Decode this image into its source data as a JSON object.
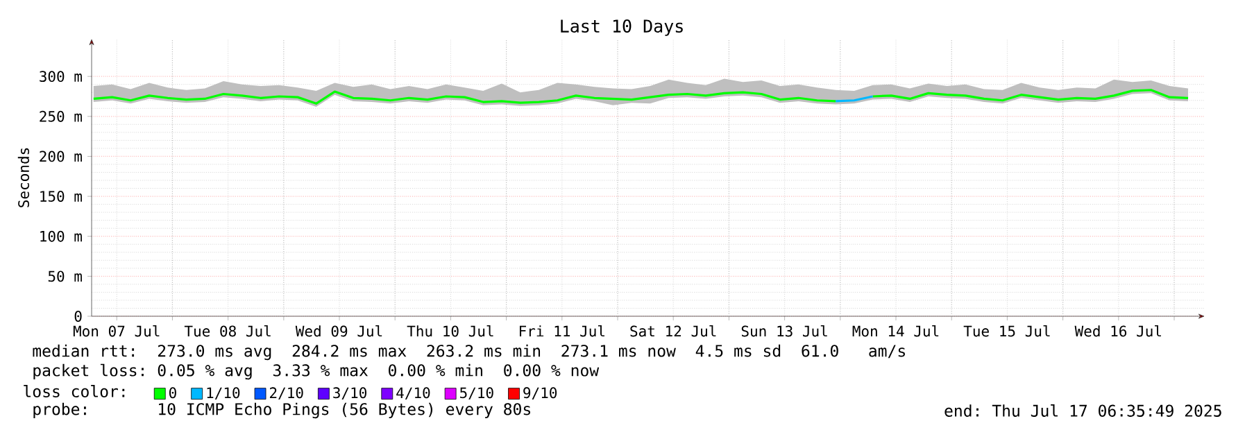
{
  "chart_data": {
    "type": "line",
    "title": "Last 10 Days",
    "ylabel": "Seconds",
    "x": [
      "2025-07-07T07:00",
      "2025-07-07T11:00",
      "2025-07-07T15:00",
      "2025-07-07T19:00",
      "2025-07-07T23:00",
      "2025-07-08T03:00",
      "2025-07-08T07:00",
      "2025-07-08T11:00",
      "2025-07-08T15:00",
      "2025-07-08T19:00",
      "2025-07-08T23:00",
      "2025-07-09T03:00",
      "2025-07-09T07:00",
      "2025-07-09T11:00",
      "2025-07-09T15:00",
      "2025-07-09T19:00",
      "2025-07-09T23:00",
      "2025-07-10T03:00",
      "2025-07-10T07:00",
      "2025-07-10T11:00",
      "2025-07-10T15:00",
      "2025-07-10T19:00",
      "2025-07-10T23:00",
      "2025-07-11T03:00",
      "2025-07-11T07:00",
      "2025-07-11T11:00",
      "2025-07-11T15:00",
      "2025-07-11T19:00",
      "2025-07-11T23:00",
      "2025-07-12T03:00",
      "2025-07-12T07:00",
      "2025-07-12T11:00",
      "2025-07-12T15:00",
      "2025-07-12T19:00",
      "2025-07-12T23:00",
      "2025-07-13T03:00",
      "2025-07-13T07:00",
      "2025-07-13T11:00",
      "2025-07-13T15:00",
      "2025-07-13T19:00",
      "2025-07-13T23:00",
      "2025-07-14T03:00",
      "2025-07-14T07:00",
      "2025-07-14T11:00",
      "2025-07-14T15:00",
      "2025-07-14T19:00",
      "2025-07-14T23:00",
      "2025-07-15T03:00",
      "2025-07-15T07:00",
      "2025-07-15T11:00",
      "2025-07-15T15:00",
      "2025-07-15T19:00",
      "2025-07-15T23:00",
      "2025-07-16T03:00",
      "2025-07-16T07:00",
      "2025-07-16T11:00",
      "2025-07-16T15:00",
      "2025-07-16T19:00",
      "2025-07-16T23:00",
      "2025-07-17T03:00"
    ],
    "series": [
      {
        "name": "0",
        "color": "#00ff00",
        "values": [
          272,
          274,
          270,
          276,
          273,
          271,
          272,
          278,
          276,
          273,
          275,
          274,
          266,
          281,
          273,
          272,
          270,
          273,
          271,
          275,
          274,
          268,
          269,
          267,
          268,
          270,
          276,
          273,
          272,
          271,
          274,
          277,
          278,
          276,
          279,
          280,
          278,
          271,
          273,
          270,
          269,
          null,
          275,
          276,
          272,
          279,
          277,
          276,
          272,
          270,
          277,
          274,
          271,
          273,
          272,
          276,
          282,
          283,
          274,
          273
        ],
        "lower": [
          268,
          270,
          266,
          272,
          269,
          267,
          268,
          274,
          272,
          269,
          271,
          270,
          262,
          277,
          269,
          268,
          266,
          269,
          267,
          271,
          270,
          264,
          265,
          263,
          264,
          266,
          272,
          269,
          264,
          267,
          266,
          273,
          274,
          272,
          275,
          276,
          274,
          267,
          269,
          266,
          265,
          266,
          271,
          272,
          268,
          275,
          273,
          272,
          268,
          266,
          273,
          270,
          267,
          269,
          268,
          272,
          278,
          279,
          270,
          269
        ],
        "upper": [
          288,
          290,
          284,
          292,
          286,
          283,
          285,
          294,
          290,
          288,
          289,
          286,
          282,
          292,
          287,
          290,
          284,
          288,
          284,
          290,
          286,
          282,
          291,
          280,
          283,
          292,
          290,
          287,
          285,
          284,
          288,
          296,
          292,
          289,
          297,
          293,
          295,
          288,
          290,
          286,
          283,
          282,
          289,
          290,
          285,
          291,
          288,
          290,
          284,
          283,
          292,
          286,
          283,
          286,
          285,
          296,
          293,
          295,
          288,
          285
        ]
      },
      {
        "name": "1/10",
        "color": "#00b8ff",
        "values": [
          null,
          null,
          null,
          null,
          null,
          null,
          null,
          null,
          null,
          null,
          null,
          null,
          null,
          null,
          null,
          null,
          null,
          null,
          null,
          null,
          null,
          null,
          null,
          null,
          null,
          null,
          null,
          null,
          null,
          null,
          null,
          null,
          null,
          null,
          null,
          null,
          null,
          null,
          null,
          null,
          269,
          270,
          275,
          null,
          null,
          null,
          null,
          null,
          null,
          null,
          null,
          null,
          null,
          null,
          null,
          null,
          null,
          null,
          null,
          null
        ]
      },
      {
        "name": "2/10",
        "color": "#0059ff",
        "values": [
          null,
          null,
          null,
          null,
          null,
          null,
          null,
          null,
          null,
          null,
          null,
          null,
          null,
          null,
          null,
          null,
          null,
          null,
          null,
          null,
          null,
          null,
          null,
          null,
          null,
          null,
          null,
          null,
          null,
          null,
          null,
          null,
          null,
          null,
          null,
          null,
          null,
          null,
          null,
          null,
          null,
          null,
          null,
          null,
          null,
          null,
          null,
          null,
          null,
          null,
          null,
          null,
          null,
          null,
          null,
          null,
          null,
          null,
          null,
          null
        ]
      },
      {
        "name": "3/10",
        "color": "#5e00ff",
        "values": [
          null,
          null,
          null,
          null,
          null,
          null,
          null,
          null,
          null,
          null,
          null,
          null,
          null,
          null,
          null,
          null,
          null,
          null,
          null,
          null,
          null,
          null,
          null,
          null,
          null,
          null,
          null,
          null,
          null,
          null,
          null,
          null,
          null,
          null,
          null,
          null,
          null,
          null,
          null,
          null,
          null,
          null,
          null,
          null,
          null,
          null,
          null,
          null,
          null,
          null,
          null,
          null,
          null,
          null,
          null,
          null,
          null,
          null,
          null,
          null
        ]
      },
      {
        "name": "4/10",
        "color": "#7e00ff",
        "values": [
          null,
          null,
          null,
          null,
          null,
          null,
          null,
          null,
          null,
          null,
          null,
          null,
          null,
          null,
          null,
          null,
          null,
          null,
          null,
          null,
          null,
          null,
          null,
          null,
          null,
          null,
          null,
          null,
          null,
          null,
          null,
          null,
          null,
          null,
          null,
          null,
          null,
          null,
          null,
          null,
          null,
          null,
          null,
          null,
          null,
          null,
          null,
          null,
          null,
          null,
          null,
          null,
          null,
          null,
          null,
          null,
          null,
          null,
          null,
          null
        ]
      },
      {
        "name": "5/10",
        "color": "#dd00ff",
        "values": [
          null,
          null,
          null,
          null,
          null,
          null,
          null,
          null,
          null,
          null,
          null,
          null,
          null,
          null,
          null,
          null,
          null,
          null,
          null,
          null,
          null,
          null,
          null,
          null,
          null,
          null,
          null,
          null,
          null,
          null,
          null,
          null,
          null,
          null,
          null,
          null,
          null,
          null,
          null,
          null,
          null,
          null,
          null,
          null,
          null,
          null,
          null,
          null,
          null,
          null,
          null,
          null,
          null,
          null,
          null,
          null,
          null,
          null,
          null,
          null
        ]
      },
      {
        "name": "9/10",
        "color": "#ff0000",
        "values": [
          null,
          null,
          null,
          null,
          null,
          null,
          null,
          null,
          null,
          null,
          null,
          null,
          null,
          null,
          null,
          null,
          null,
          null,
          null,
          null,
          null,
          null,
          null,
          null,
          null,
          null,
          null,
          null,
          null,
          null,
          null,
          null,
          null,
          null,
          null,
          null,
          null,
          null,
          null,
          null,
          null,
          null,
          null,
          null,
          null,
          null,
          null,
          null,
          null,
          null,
          null,
          null,
          null,
          null,
          null,
          null,
          null,
          null,
          null,
          null
        ]
      }
    ],
    "xlim": [
      "2025-07-07T06:35",
      "2025-07-17T06:35"
    ],
    "xticks": [
      {
        "value": "2025-07-07T12:00",
        "label": "Mon 07 Jul"
      },
      {
        "value": "2025-07-08T12:00",
        "label": "Tue 08 Jul"
      },
      {
        "value": "2025-07-09T12:00",
        "label": "Wed 09 Jul"
      },
      {
        "value": "2025-07-10T12:00",
        "label": "Thu 10 Jul"
      },
      {
        "value": "2025-07-11T12:00",
        "label": "Fri 11 Jul"
      },
      {
        "value": "2025-07-12T12:00",
        "label": "Sat 12 Jul"
      },
      {
        "value": "2025-07-13T12:00",
        "label": "Sun 13 Jul"
      },
      {
        "value": "2025-07-14T12:00",
        "label": "Mon 14 Jul"
      },
      {
        "value": "2025-07-15T12:00",
        "label": "Tue 15 Jul"
      },
      {
        "value": "2025-07-16T12:00",
        "label": "Wed 16 Jul"
      },
      {
        "value": "2025-07-08T00:00",
        "label": null
      },
      {
        "value": "2025-07-09T00:00",
        "label": null
      },
      {
        "value": "2025-07-10T00:00",
        "label": null
      },
      {
        "value": "2025-07-11T00:00",
        "label": null
      },
      {
        "value": "2025-07-12T00:00",
        "label": null
      },
      {
        "value": "2025-07-13T00:00",
        "label": null
      },
      {
        "value": "2025-07-14T00:00",
        "label": null
      },
      {
        "value": "2025-07-15T00:00",
        "label": null
      },
      {
        "value": "2025-07-16T00:00",
        "label": null
      },
      {
        "value": "2025-07-17T00:00",
        "label": null
      }
    ],
    "ylim": [
      0,
      347
    ],
    "yticks": [
      0,
      {
        "value": 50,
        "label": "50 m"
      },
      {
        "value": 100,
        "label": "100 m"
      },
      {
        "value": 150,
        "label": "150 m"
      },
      {
        "value": 200,
        "label": "200 m"
      },
      {
        "value": 250,
        "label": "250 m"
      },
      {
        "value": 300,
        "label": "300 m"
      }
    ],
    "grid": true,
    "legend": "bottom",
    "legend_title": "loss color:",
    "marker": "none",
    "line_style": "solid",
    "annotations": [
      "median rtt:  273.0 ms avg  284.2 ms max  263.2 ms min  273.1 ms now  4.5 ms sd  61.0   am/s",
      "packet loss: 0.05 % avg  3.33 % max  0.00 % min  0.00 % now",
      "probe:       10 ICMP Echo Pings (56 Bytes) every 80s",
      "end: Thu Jul 17 06:35:49 2025"
    ]
  }
}
